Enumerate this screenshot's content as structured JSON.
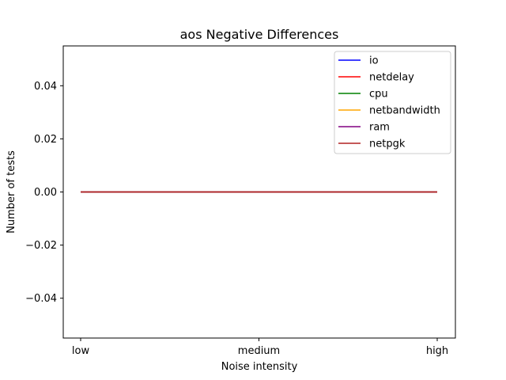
{
  "chart_data": {
    "type": "line",
    "title": "aos Negative Differences",
    "xlabel": "Noise intensity",
    "ylabel": "Number of tests",
    "categories": [
      "low",
      "medium",
      "high"
    ],
    "ylim": [
      -0.055,
      0.055
    ],
    "yticks": [
      -0.04,
      -0.02,
      0.0,
      0.02,
      0.04
    ],
    "ytick_labels": [
      "−0.04",
      "−0.02",
      "0.00",
      "0.02",
      "0.04"
    ],
    "grid": false,
    "legend_position": "top-right",
    "series": [
      {
        "name": "io",
        "color": "#0000ff",
        "values": [
          0,
          0,
          0
        ]
      },
      {
        "name": "netdelay",
        "color": "#ff0000",
        "values": [
          0,
          0,
          0
        ]
      },
      {
        "name": "cpu",
        "color": "#008000",
        "values": [
          0,
          0,
          0
        ]
      },
      {
        "name": "netbandwidth",
        "color": "#ffa500",
        "values": [
          0,
          0,
          0
        ]
      },
      {
        "name": "ram",
        "color": "#800080",
        "values": [
          0,
          0,
          0
        ]
      },
      {
        "name": "netpgk",
        "color": "#b22222",
        "values": [
          0,
          0,
          0
        ]
      }
    ]
  }
}
